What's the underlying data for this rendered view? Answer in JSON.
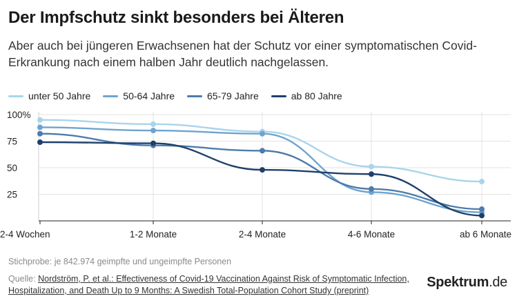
{
  "chart_data": {
    "type": "line",
    "title": "Der Impfschutz sinkt besonders bei Älteren",
    "subtitle": "Aber auch bei jüngeren Erwachsenen hat der Schutz vor einer symptomatischen Covid-Erkrankung nach einem halben Jahr deutlich nachgelassen.",
    "categories": [
      "2-4 Wochen",
      "1-2 Monate",
      "2-4 Monate",
      "4-6 Monate",
      "ab 6 Monate"
    ],
    "y_ticks": [
      25,
      50,
      75,
      100
    ],
    "y_tick_labels": [
      "25",
      "50",
      "75",
      "100%"
    ],
    "ylim": [
      0,
      100
    ],
    "series": [
      {
        "name": "unter 50 Jahre",
        "color": "#a9d4ec",
        "values": [
          95,
          91,
          84,
          51,
          37
        ]
      },
      {
        "name": "50-64 Jahre",
        "color": "#6ea3cf",
        "values": [
          88,
          85,
          82,
          27,
          8
        ]
      },
      {
        "name": "65-79 Jahre",
        "color": "#4d7bac",
        "values": [
          82,
          71,
          66,
          30,
          11
        ]
      },
      {
        "name": "ab 80 Jahre",
        "color": "#1f3f6b",
        "values": [
          74,
          73,
          48,
          44,
          5
        ]
      }
    ],
    "legend_position": "top-left"
  },
  "footer": {
    "sample": "Stichprobe: je 842.974 geimpfte und ungeimpfte Personen",
    "source_label": "Quelle: ",
    "source_link": "Nordström, P. et al.: Effectiveness of Covid-19 Vaccination Against Risk of Symptomatic Infection, Hospitalization, and Death Up to 9 Months: A Swedish Total-Population Cohort Study (preprint)"
  },
  "brand": {
    "name": "Spektrum",
    "tld": ".de"
  }
}
